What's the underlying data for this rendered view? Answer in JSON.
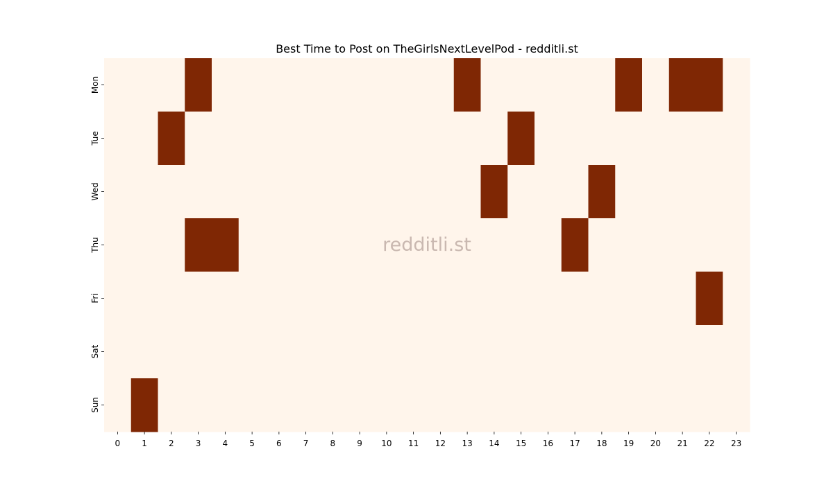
{
  "chart_data": {
    "type": "heatmap",
    "title": "Best Time to Post on TheGirlsNextLevelPod - redditli.st",
    "x_categories": [
      "0",
      "1",
      "2",
      "3",
      "4",
      "5",
      "6",
      "7",
      "8",
      "9",
      "10",
      "11",
      "12",
      "13",
      "14",
      "15",
      "16",
      "17",
      "18",
      "19",
      "20",
      "21",
      "22",
      "23"
    ],
    "y_categories": [
      "Mon",
      "Tue",
      "Wed",
      "Thu",
      "Fri",
      "Sat",
      "Sun"
    ],
    "values": [
      [
        0,
        0,
        0,
        1,
        0,
        0,
        0,
        0,
        0,
        0,
        0,
        0,
        0,
        1,
        0,
        0,
        0,
        0,
        0,
        1,
        0,
        1,
        1,
        0
      ],
      [
        0,
        0,
        1,
        0,
        0,
        0,
        0,
        0,
        0,
        0,
        0,
        0,
        0,
        0,
        0,
        1,
        0,
        0,
        0,
        0,
        0,
        0,
        0,
        0
      ],
      [
        0,
        0,
        0,
        0,
        0,
        0,
        0,
        0,
        0,
        0,
        0,
        0,
        0,
        0,
        1,
        0,
        0,
        0,
        1,
        0,
        0,
        0,
        0,
        0
      ],
      [
        0,
        0,
        0,
        1,
        1,
        0,
        0,
        0,
        0,
        0,
        0,
        0,
        0,
        0,
        0,
        0,
        0,
        1,
        0,
        0,
        0,
        0,
        0,
        0
      ],
      [
        0,
        0,
        0,
        0,
        0,
        0,
        0,
        0,
        0,
        0,
        0,
        0,
        0,
        0,
        0,
        0,
        0,
        0,
        0,
        0,
        0,
        0,
        1,
        0
      ],
      [
        0,
        0,
        0,
        0,
        0,
        0,
        0,
        0,
        0,
        0,
        0,
        0,
        0,
        0,
        0,
        0,
        0,
        0,
        0,
        0,
        0,
        0,
        0,
        0
      ],
      [
        0,
        1,
        0,
        0,
        0,
        0,
        0,
        0,
        0,
        0,
        0,
        0,
        0,
        0,
        0,
        0,
        0,
        0,
        0,
        0,
        0,
        0,
        0,
        0
      ]
    ],
    "low_color": "#fff5eb",
    "high_color": "#7f2704",
    "watermark": "redditli.st",
    "colorbar": false
  }
}
